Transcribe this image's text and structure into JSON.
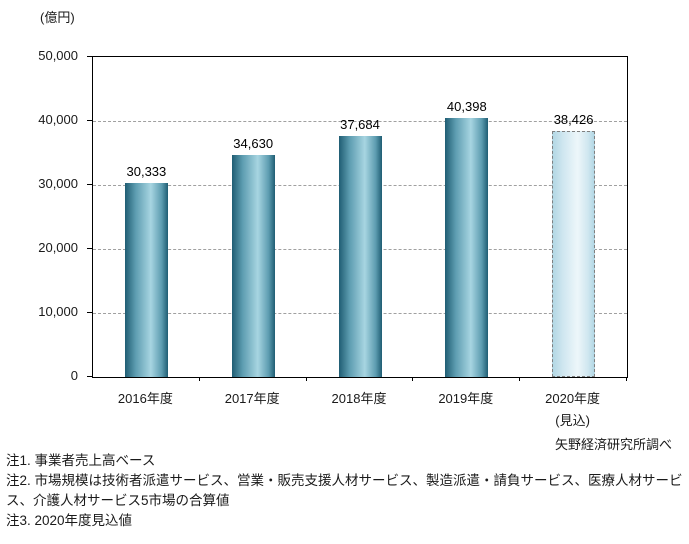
{
  "chart": {
    "unit_label": "(億円)",
    "source": "矢野経済研究所調べ"
  },
  "chart_data": {
    "type": "bar",
    "title": "",
    "unit": "億円",
    "categories": [
      "2016年度",
      "2017年度",
      "2018年度",
      "2019年度",
      "2020年度"
    ],
    "category_sublabels": [
      "",
      "",
      "",
      "",
      "(見込)"
    ],
    "values": [
      30333,
      34630,
      37684,
      40398,
      38426
    ],
    "value_labels": [
      "30,333",
      "34,630",
      "37,684",
      "40,398",
      "38,426"
    ],
    "forecast_index": 4,
    "ylim": [
      0,
      50000
    ],
    "y_ticks": [
      0,
      10000,
      20000,
      30000,
      40000,
      50000
    ],
    "y_tick_labels": [
      "0",
      "10,000",
      "20,000",
      "30,000",
      "40,000",
      "50,000"
    ],
    "grid": "horizontal-dashed",
    "legend": "none"
  },
  "colors": {
    "bar_dark": "#1f5d73",
    "bar_mid": "#5e9db1",
    "bar_light": "#a7d5e1",
    "forecast_dark": "#b3d7e4",
    "forecast_mid": "#d0e7f0",
    "forecast_light": "#edf6fa",
    "forecast_border": "#7f7f7f",
    "gridline": "#a0a0a0",
    "axis": "#000000"
  },
  "notes": [
    "注1. 事業者売上高ベース",
    "注2. 市場規模は技術者派遣サービス、営業・販売支援人材サービス、製造派遣・請負サービス、医療人材サービス、介護人材サービス5市場の合算値",
    "注3. 2020年度見込値"
  ]
}
